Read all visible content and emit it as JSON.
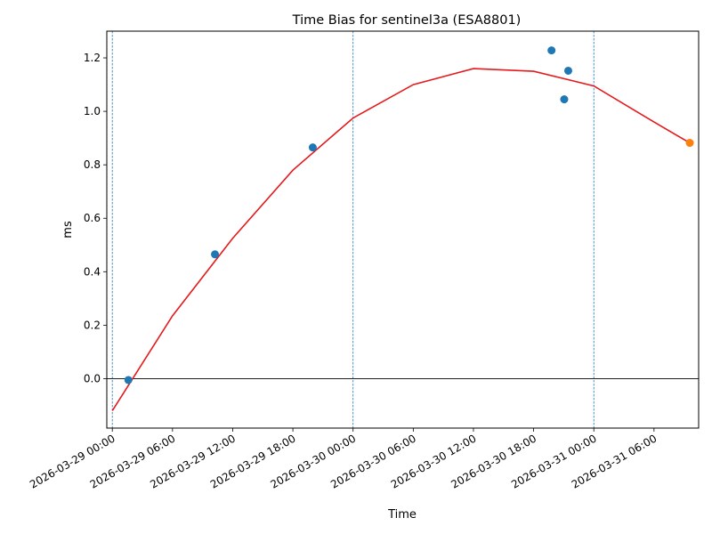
{
  "chart_data": {
    "type": "scatter",
    "title": "Time Bias for sentinel3a (ESA8801)",
    "xlabel": "Time",
    "ylabel": "ms",
    "x_is_datetime": true,
    "xlim": [
      "2026-03-28T23:27:00",
      "2026-03-31T10:27:00"
    ],
    "ylim": [
      -0.185,
      1.3
    ],
    "y_ticks": [
      0.0,
      0.2,
      0.4,
      0.6,
      0.8,
      1.0,
      1.2
    ],
    "y_tick_labels": [
      "0.0",
      "0.2",
      "0.4",
      "0.6",
      "0.8",
      "1.0",
      "1.2"
    ],
    "x_ticks": [
      "2026-03-29T00:00:00",
      "2026-03-29T06:00:00",
      "2026-03-29T12:00:00",
      "2026-03-29T18:00:00",
      "2026-03-30T00:00:00",
      "2026-03-30T06:00:00",
      "2026-03-30T12:00:00",
      "2026-03-30T18:00:00",
      "2026-03-31T00:00:00",
      "2026-03-31T06:00:00"
    ],
    "x_tick_labels": [
      "2026-03-29 00:00",
      "2026-03-29 06:00",
      "2026-03-29 12:00",
      "2026-03-29 18:00",
      "2026-03-30 00:00",
      "2026-03-30 06:00",
      "2026-03-30 12:00",
      "2026-03-30 18:00",
      "2026-03-31 00:00",
      "2026-03-31 06:00"
    ],
    "vertical_lines": [
      "2026-03-29T00:00:00",
      "2026-03-30T00:00:00",
      "2026-03-31T00:00:00"
    ],
    "horizontal_line": 0.0,
    "grid": false,
    "colors": {
      "observed": "#1f77b4",
      "predicted": "#ff7f0e",
      "fit": "#e41a1c",
      "vlines": "#1f77b4",
      "hline": "#000000"
    },
    "series": [
      {
        "type": "scatter",
        "points": [
          {
            "x": "2026-03-29T01:36:00",
            "y": -0.005
          },
          {
            "x": "2026-03-29T10:14:00",
            "y": 0.465
          },
          {
            "x": "2026-03-29T19:59:00",
            "y": 0.865
          },
          {
            "x": "2026-03-30T19:47:00",
            "y": 1.228
          },
          {
            "x": "2026-03-30T21:03:00",
            "y": 1.045
          },
          {
            "x": "2026-03-30T21:27:00",
            "y": 1.152
          }
        ]
      },
      {
        "type": "scatter",
        "points": [
          {
            "x": "2026-03-31T09:34:00",
            "y": 0.882
          }
        ]
      },
      {
        "type": "line",
        "points": [
          {
            "x": "2026-03-29T00:00:00",
            "y": -0.12
          },
          {
            "x": "2026-03-29T06:00:00",
            "y": 0.235
          },
          {
            "x": "2026-03-29T12:00:00",
            "y": 0.525
          },
          {
            "x": "2026-03-29T18:00:00",
            "y": 0.78
          },
          {
            "x": "2026-03-30T00:00:00",
            "y": 0.975
          },
          {
            "x": "2026-03-30T06:00:00",
            "y": 1.1
          },
          {
            "x": "2026-03-30T12:00:00",
            "y": 1.16
          },
          {
            "x": "2026-03-30T18:00:00",
            "y": 1.15
          },
          {
            "x": "2026-03-31T00:00:00",
            "y": 1.095
          },
          {
            "x": "2026-03-31T06:00:00",
            "y": 0.96
          },
          {
            "x": "2026-03-31T09:34:00",
            "y": 0.882
          }
        ]
      }
    ]
  }
}
